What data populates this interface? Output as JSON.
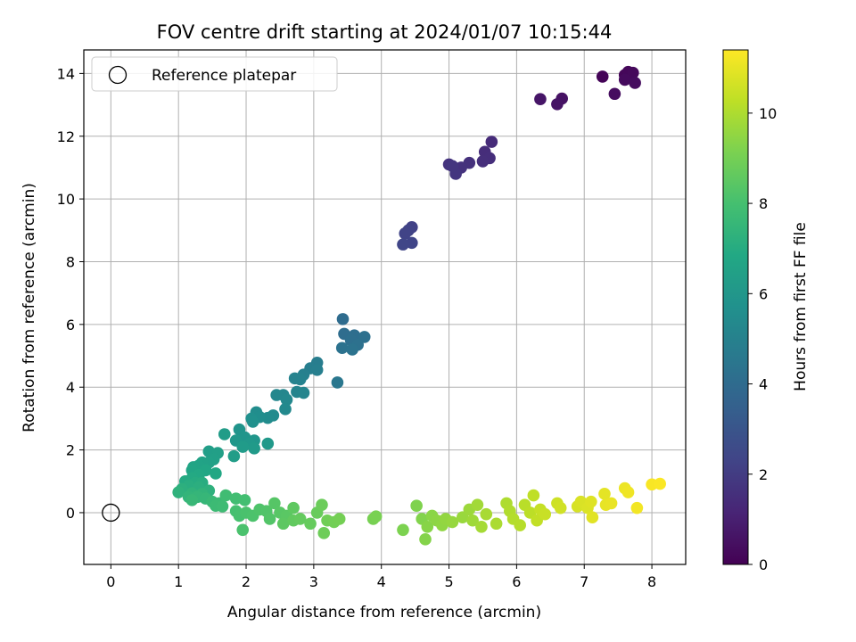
{
  "chart_data": {
    "type": "scatter",
    "title": "FOV centre drift starting at 2024/01/07 10:15:44",
    "xlabel": "Angular distance from reference (arcmin)",
    "ylabel": "Rotation from reference (arcmin)",
    "xlim": [
      -0.4,
      8.5
    ],
    "ylim": [
      -1.65,
      14.75
    ],
    "xticks": [
      0,
      1,
      2,
      3,
      4,
      5,
      6,
      7,
      8
    ],
    "yticks": [
      0,
      2,
      4,
      6,
      8,
      10,
      12,
      14
    ],
    "grid": true,
    "legend": {
      "position": "top-left",
      "entries": [
        "Reference platepar"
      ]
    },
    "reference_point": {
      "x": 0,
      "y": 0
    },
    "colorbar": {
      "label": "Hours from first FF file",
      "colormap": "viridis",
      "range": [
        0,
        11.4
      ],
      "ticks": [
        0,
        2,
        4,
        6,
        8,
        10
      ]
    },
    "points": [
      {
        "x": 7.27,
        "y": 13.9,
        "t": 0.1
      },
      {
        "x": 7.6,
        "y": 13.95,
        "t": 0.15
      },
      {
        "x": 7.65,
        "y": 14.05,
        "t": 0.2
      },
      {
        "x": 7.72,
        "y": 14.02,
        "t": 0.25
      },
      {
        "x": 7.6,
        "y": 13.8,
        "t": 0.3
      },
      {
        "x": 7.75,
        "y": 13.7,
        "t": 0.35
      },
      {
        "x": 7.45,
        "y": 13.35,
        "t": 0.4
      },
      {
        "x": 6.67,
        "y": 13.2,
        "t": 0.55
      },
      {
        "x": 6.6,
        "y": 13.02,
        "t": 0.6
      },
      {
        "x": 6.35,
        "y": 13.18,
        "t": 0.65
      },
      {
        "x": 5.63,
        "y": 11.82,
        "t": 1.4
      },
      {
        "x": 5.53,
        "y": 11.5,
        "t": 1.45
      },
      {
        "x": 5.6,
        "y": 11.3,
        "t": 1.5
      },
      {
        "x": 5.5,
        "y": 11.2,
        "t": 1.55
      },
      {
        "x": 5.3,
        "y": 11.15,
        "t": 1.6
      },
      {
        "x": 5.18,
        "y": 11.0,
        "t": 1.65
      },
      {
        "x": 5.0,
        "y": 11.1,
        "t": 1.7
      },
      {
        "x": 5.1,
        "y": 10.8,
        "t": 1.75
      },
      {
        "x": 5.05,
        "y": 11.05,
        "t": 1.8
      },
      {
        "x": 4.45,
        "y": 9.1,
        "t": 2.2
      },
      {
        "x": 4.4,
        "y": 9.0,
        "t": 2.25
      },
      {
        "x": 4.35,
        "y": 8.9,
        "t": 2.3
      },
      {
        "x": 4.45,
        "y": 8.6,
        "t": 2.35
      },
      {
        "x": 4.32,
        "y": 8.55,
        "t": 2.4
      },
      {
        "x": 3.43,
        "y": 6.17,
        "t": 4.0
      },
      {
        "x": 3.45,
        "y": 5.7,
        "t": 4.05
      },
      {
        "x": 3.6,
        "y": 5.65,
        "t": 4.1
      },
      {
        "x": 3.55,
        "y": 5.5,
        "t": 4.15
      },
      {
        "x": 3.75,
        "y": 5.6,
        "t": 4.2
      },
      {
        "x": 3.65,
        "y": 5.35,
        "t": 4.25
      },
      {
        "x": 3.42,
        "y": 5.25,
        "t": 4.3
      },
      {
        "x": 3.57,
        "y": 5.2,
        "t": 4.35
      },
      {
        "x": 3.35,
        "y": 4.15,
        "t": 4.5
      },
      {
        "x": 3.05,
        "y": 4.78,
        "t": 4.8
      },
      {
        "x": 2.95,
        "y": 4.6,
        "t": 4.85
      },
      {
        "x": 3.05,
        "y": 4.55,
        "t": 4.9
      },
      {
        "x": 2.85,
        "y": 4.4,
        "t": 4.95
      },
      {
        "x": 2.8,
        "y": 4.25,
        "t": 5.0
      },
      {
        "x": 2.72,
        "y": 4.28,
        "t": 5.05
      },
      {
        "x": 2.75,
        "y": 3.85,
        "t": 5.1
      },
      {
        "x": 2.85,
        "y": 3.82,
        "t": 5.15
      },
      {
        "x": 2.55,
        "y": 3.75,
        "t": 5.2
      },
      {
        "x": 2.45,
        "y": 3.75,
        "t": 5.25
      },
      {
        "x": 2.6,
        "y": 3.6,
        "t": 5.3
      },
      {
        "x": 2.58,
        "y": 3.3,
        "t": 5.35
      },
      {
        "x": 2.4,
        "y": 3.1,
        "t": 5.45
      },
      {
        "x": 2.32,
        "y": 3.02,
        "t": 5.5
      },
      {
        "x": 2.15,
        "y": 3.2,
        "t": 5.55
      },
      {
        "x": 2.2,
        "y": 3.05,
        "t": 5.6
      },
      {
        "x": 2.08,
        "y": 3.0,
        "t": 5.65
      },
      {
        "x": 2.1,
        "y": 2.9,
        "t": 5.7
      },
      {
        "x": 1.9,
        "y": 2.65,
        "t": 5.85
      },
      {
        "x": 1.98,
        "y": 2.4,
        "t": 5.9
      },
      {
        "x": 2.12,
        "y": 2.3,
        "t": 5.95
      },
      {
        "x": 1.85,
        "y": 2.3,
        "t": 6.0
      },
      {
        "x": 2.05,
        "y": 2.2,
        "t": 6.05
      },
      {
        "x": 2.32,
        "y": 2.2,
        "t": 6.1
      },
      {
        "x": 2.12,
        "y": 2.05,
        "t": 6.15
      },
      {
        "x": 1.95,
        "y": 2.1,
        "t": 6.2
      },
      {
        "x": 1.68,
        "y": 2.5,
        "t": 6.25
      },
      {
        "x": 1.82,
        "y": 1.8,
        "t": 6.3
      },
      {
        "x": 1.45,
        "y": 1.95,
        "t": 6.35
      },
      {
        "x": 1.58,
        "y": 1.9,
        "t": 6.4
      },
      {
        "x": 1.52,
        "y": 1.7,
        "t": 6.45
      },
      {
        "x": 1.45,
        "y": 1.6,
        "t": 6.5
      },
      {
        "x": 1.35,
        "y": 1.6,
        "t": 6.55
      },
      {
        "x": 1.3,
        "y": 1.5,
        "t": 6.6
      },
      {
        "x": 1.22,
        "y": 1.45,
        "t": 6.65
      },
      {
        "x": 1.2,
        "y": 1.35,
        "t": 6.7
      },
      {
        "x": 1.4,
        "y": 1.35,
        "t": 6.75
      },
      {
        "x": 1.55,
        "y": 1.25,
        "t": 6.8
      },
      {
        "x": 1.3,
        "y": 1.2,
        "t": 6.85
      },
      {
        "x": 1.2,
        "y": 1.1,
        "t": 6.9
      },
      {
        "x": 1.1,
        "y": 1.0,
        "t": 6.95
      },
      {
        "x": 1.25,
        "y": 0.95,
        "t": 7.0
      },
      {
        "x": 1.35,
        "y": 0.95,
        "t": 7.05
      },
      {
        "x": 1.15,
        "y": 0.85,
        "t": 7.1
      },
      {
        "x": 1.3,
        "y": 0.8,
        "t": 7.15
      },
      {
        "x": 1.05,
        "y": 0.75,
        "t": 7.2
      },
      {
        "x": 1.45,
        "y": 0.7,
        "t": 7.25
      },
      {
        "x": 1.0,
        "y": 0.65,
        "t": 7.3
      },
      {
        "x": 1.2,
        "y": 0.62,
        "t": 7.35
      },
      {
        "x": 1.35,
        "y": 0.6,
        "t": 7.4
      },
      {
        "x": 1.15,
        "y": 0.5,
        "t": 7.45
      },
      {
        "x": 1.28,
        "y": 0.5,
        "t": 7.5
      },
      {
        "x": 1.4,
        "y": 0.45,
        "t": 7.55
      },
      {
        "x": 1.2,
        "y": 0.4,
        "t": 7.6
      },
      {
        "x": 1.5,
        "y": 0.35,
        "t": 7.65
      },
      {
        "x": 1.6,
        "y": 0.3,
        "t": 7.7
      },
      {
        "x": 1.55,
        "y": 0.22,
        "t": 7.75
      },
      {
        "x": 1.65,
        "y": 0.2,
        "t": 7.8
      },
      {
        "x": 1.7,
        "y": 0.55,
        "t": 7.85
      },
      {
        "x": 1.85,
        "y": 0.45,
        "t": 7.9
      },
      {
        "x": 1.98,
        "y": 0.4,
        "t": 7.95
      },
      {
        "x": 1.85,
        "y": 0.05,
        "t": 8.0
      },
      {
        "x": 1.9,
        "y": -0.1,
        "t": 8.05
      },
      {
        "x": 2.0,
        "y": 0.0,
        "t": 8.1
      },
      {
        "x": 2.1,
        "y": -0.1,
        "t": 8.15
      },
      {
        "x": 2.2,
        "y": 0.1,
        "t": 8.2
      },
      {
        "x": 2.3,
        "y": 0.05,
        "t": 8.25
      },
      {
        "x": 2.35,
        "y": -0.2,
        "t": 8.3
      },
      {
        "x": 2.42,
        "y": 0.3,
        "t": 8.35
      },
      {
        "x": 2.5,
        "y": 0.0,
        "t": 8.4
      },
      {
        "x": 2.6,
        "y": -0.1,
        "t": 8.45
      },
      {
        "x": 2.55,
        "y": -0.35,
        "t": 8.5
      },
      {
        "x": 2.7,
        "y": 0.15,
        "t": 8.55
      },
      {
        "x": 2.7,
        "y": -0.25,
        "t": 8.6
      },
      {
        "x": 2.8,
        "y": -0.2,
        "t": 8.65
      },
      {
        "x": 2.95,
        "y": -0.35,
        "t": 8.7
      },
      {
        "x": 3.05,
        "y": 0.0,
        "t": 8.75
      },
      {
        "x": 3.12,
        "y": 0.25,
        "t": 8.8
      },
      {
        "x": 3.15,
        "y": -0.65,
        "t": 8.85
      },
      {
        "x": 3.2,
        "y": -0.25,
        "t": 8.9
      },
      {
        "x": 3.3,
        "y": -0.3,
        "t": 8.95
      },
      {
        "x": 3.38,
        "y": -0.2,
        "t": 9.0
      },
      {
        "x": 1.95,
        "y": -0.55,
        "t": 8.1
      },
      {
        "x": 3.88,
        "y": -0.2,
        "t": 9.05
      },
      {
        "x": 3.92,
        "y": -0.12,
        "t": 9.1
      },
      {
        "x": 4.32,
        "y": -0.55,
        "t": 9.15
      },
      {
        "x": 4.52,
        "y": 0.22,
        "t": 9.2
      },
      {
        "x": 4.6,
        "y": -0.2,
        "t": 9.25
      },
      {
        "x": 4.65,
        "y": -0.85,
        "t": 9.3
      },
      {
        "x": 4.68,
        "y": -0.45,
        "t": 9.35
      },
      {
        "x": 4.75,
        "y": -0.1,
        "t": 9.4
      },
      {
        "x": 4.82,
        "y": -0.25,
        "t": 9.45
      },
      {
        "x": 4.9,
        "y": -0.4,
        "t": 9.5
      },
      {
        "x": 4.95,
        "y": -0.2,
        "t": 9.55
      },
      {
        "x": 5.05,
        "y": -0.3,
        "t": 9.6
      },
      {
        "x": 5.2,
        "y": -0.15,
        "t": 9.65
      },
      {
        "x": 5.3,
        "y": 0.1,
        "t": 9.7
      },
      {
        "x": 5.35,
        "y": -0.25,
        "t": 9.75
      },
      {
        "x": 5.42,
        "y": 0.25,
        "t": 9.8
      },
      {
        "x": 5.48,
        "y": -0.45,
        "t": 9.85
      },
      {
        "x": 5.55,
        "y": -0.05,
        "t": 9.9
      },
      {
        "x": 5.7,
        "y": -0.35,
        "t": 9.95
      },
      {
        "x": 5.85,
        "y": 0.3,
        "t": 10.0
      },
      {
        "x": 5.9,
        "y": 0.05,
        "t": 10.05
      },
      {
        "x": 5.95,
        "y": -0.2,
        "t": 10.1
      },
      {
        "x": 6.05,
        "y": -0.4,
        "t": 10.15
      },
      {
        "x": 6.12,
        "y": 0.25,
        "t": 10.2
      },
      {
        "x": 6.2,
        "y": 0.0,
        "t": 10.25
      },
      {
        "x": 6.25,
        "y": 0.55,
        "t": 10.3
      },
      {
        "x": 6.3,
        "y": -0.25,
        "t": 10.35
      },
      {
        "x": 6.35,
        "y": 0.1,
        "t": 10.4
      },
      {
        "x": 6.42,
        "y": -0.05,
        "t": 10.45
      },
      {
        "x": 6.6,
        "y": 0.3,
        "t": 10.55
      },
      {
        "x": 6.65,
        "y": 0.15,
        "t": 10.6
      },
      {
        "x": 6.9,
        "y": 0.2,
        "t": 10.7
      },
      {
        "x": 6.95,
        "y": 0.35,
        "t": 10.75
      },
      {
        "x": 7.05,
        "y": 0.15,
        "t": 10.8
      },
      {
        "x": 7.1,
        "y": 0.35,
        "t": 10.85
      },
      {
        "x": 7.12,
        "y": -0.15,
        "t": 10.9
      },
      {
        "x": 7.3,
        "y": 0.6,
        "t": 10.95
      },
      {
        "x": 7.32,
        "y": 0.25,
        "t": 11.0
      },
      {
        "x": 7.4,
        "y": 0.3,
        "t": 11.05
      },
      {
        "x": 7.6,
        "y": 0.78,
        "t": 11.1
      },
      {
        "x": 7.65,
        "y": 0.65,
        "t": 11.15
      },
      {
        "x": 7.78,
        "y": 0.15,
        "t": 11.2
      },
      {
        "x": 8.0,
        "y": 0.9,
        "t": 11.3
      },
      {
        "x": 8.12,
        "y": 0.92,
        "t": 11.35
      }
    ]
  }
}
